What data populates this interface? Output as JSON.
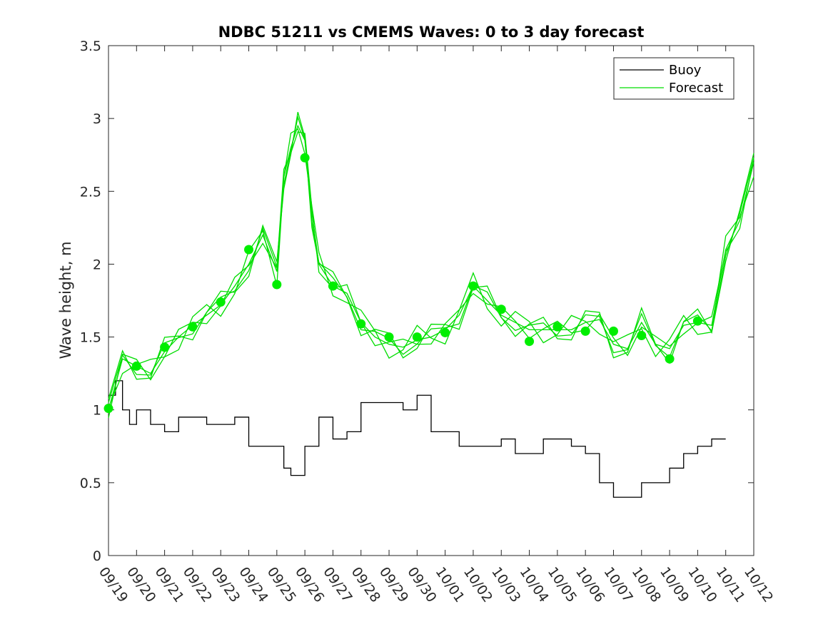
{
  "chart_data": {
    "type": "line",
    "title": "NDBC 51211 vs CMEMS Waves: 0 to 3 day forecast",
    "xlabel": "",
    "ylabel": "Wave height, m",
    "ylim": [
      0,
      3.5
    ],
    "xlim": [
      0,
      23
    ],
    "yticks": [
      0,
      0.5,
      1,
      1.5,
      2,
      2.5,
      3,
      3.5
    ],
    "ytick_labels": [
      "0",
      "0.5",
      "1",
      "1.5",
      "2",
      "2.5",
      "3",
      "3.5"
    ],
    "xtick_labels": [
      "09/19",
      "09/20",
      "09/21",
      "09/22",
      "09/23",
      "09/24",
      "09/25",
      "09/26",
      "09/27",
      "09/28",
      "09/29",
      "09/30",
      "10/01",
      "10/02",
      "10/03",
      "10/04",
      "10/05",
      "10/06",
      "10/07",
      "10/08",
      "10/09",
      "10/10",
      "10/11",
      "10/12"
    ],
    "legend": {
      "position": "top-right",
      "entries": [
        {
          "name": "Buoy",
          "color": "#000000"
        },
        {
          "name": "Forecast",
          "color": "#00dd00"
        }
      ]
    },
    "colors": {
      "buoy": "#000000",
      "forecast": "#00dd00",
      "marker": "#00ee00"
    },
    "series": [
      {
        "name": "Buoy",
        "x": [
          0,
          0.25,
          0.5,
          0.75,
          1,
          1.5,
          2,
          2.5,
          3,
          3.5,
          4,
          4.5,
          5,
          5.5,
          6,
          6.25,
          6.5,
          7,
          7.5,
          8,
          8.5,
          9,
          9.5,
          10,
          10.5,
          11,
          11.5,
          12,
          12.5,
          13,
          13.5,
          14,
          14.5,
          15,
          15.5,
          16,
          16.5,
          17,
          17.5,
          18,
          18.5,
          19,
          19.5,
          20,
          20.5,
          21,
          21.5,
          22
        ],
        "values": [
          1.1,
          1.2,
          1.0,
          0.9,
          1.0,
          0.9,
          0.85,
          0.95,
          0.95,
          0.9,
          0.9,
          0.95,
          0.75,
          0.75,
          0.75,
          0.6,
          0.55,
          0.75,
          0.95,
          0.8,
          0.85,
          1.05,
          1.05,
          1.05,
          1.0,
          1.1,
          0.85,
          0.85,
          0.75,
          0.75,
          0.75,
          0.8,
          0.7,
          0.7,
          0.8,
          0.8,
          0.75,
          0.7,
          0.5,
          0.4,
          0.4,
          0.5,
          0.5,
          0.6,
          0.7,
          0.75,
          0.8,
          0.8
        ]
      },
      {
        "name": "Forecast",
        "x": [
          0,
          0.5,
          1,
          1.5,
          2,
          2.5,
          3,
          3.5,
          4,
          4.5,
          5,
          5.5,
          6,
          6.25,
          6.5,
          6.75,
          7,
          7.25,
          7.5,
          8,
          8.5,
          9,
          9.5,
          10,
          10.5,
          11,
          11.5,
          12,
          12.5,
          13,
          13.5,
          14,
          14.5,
          15,
          15.5,
          16,
          16.5,
          17,
          17.5,
          18,
          18.5,
          19,
          19.5,
          20,
          20.5,
          21,
          21.5,
          22,
          22.5,
          23
        ],
        "values": [
          1.0,
          1.35,
          1.3,
          1.25,
          1.4,
          1.5,
          1.58,
          1.65,
          1.72,
          1.85,
          2.0,
          2.2,
          1.95,
          2.6,
          2.8,
          2.95,
          2.85,
          2.35,
          2.0,
          1.85,
          1.8,
          1.6,
          1.5,
          1.45,
          1.43,
          1.48,
          1.5,
          1.55,
          1.65,
          1.85,
          1.75,
          1.65,
          1.6,
          1.55,
          1.55,
          1.55,
          1.55,
          1.6,
          1.62,
          1.45,
          1.42,
          1.6,
          1.45,
          1.42,
          1.58,
          1.6,
          1.58,
          2.1,
          2.3,
          2.7
        ]
      },
      {
        "name": "Forecast day-0 markers",
        "x": [
          0,
          1,
          2,
          3,
          4,
          5,
          6,
          7,
          8,
          9,
          10,
          11,
          12,
          13,
          14,
          15,
          16,
          17,
          18,
          19,
          20,
          21
        ],
        "values": [
          1.01,
          1.3,
          1.43,
          1.57,
          1.74,
          2.1,
          1.86,
          2.73,
          1.85,
          1.59,
          1.5,
          1.5,
          1.53,
          1.85,
          1.69,
          1.47,
          1.57,
          1.54,
          1.54,
          1.51,
          1.35,
          1.61
        ]
      }
    ]
  }
}
